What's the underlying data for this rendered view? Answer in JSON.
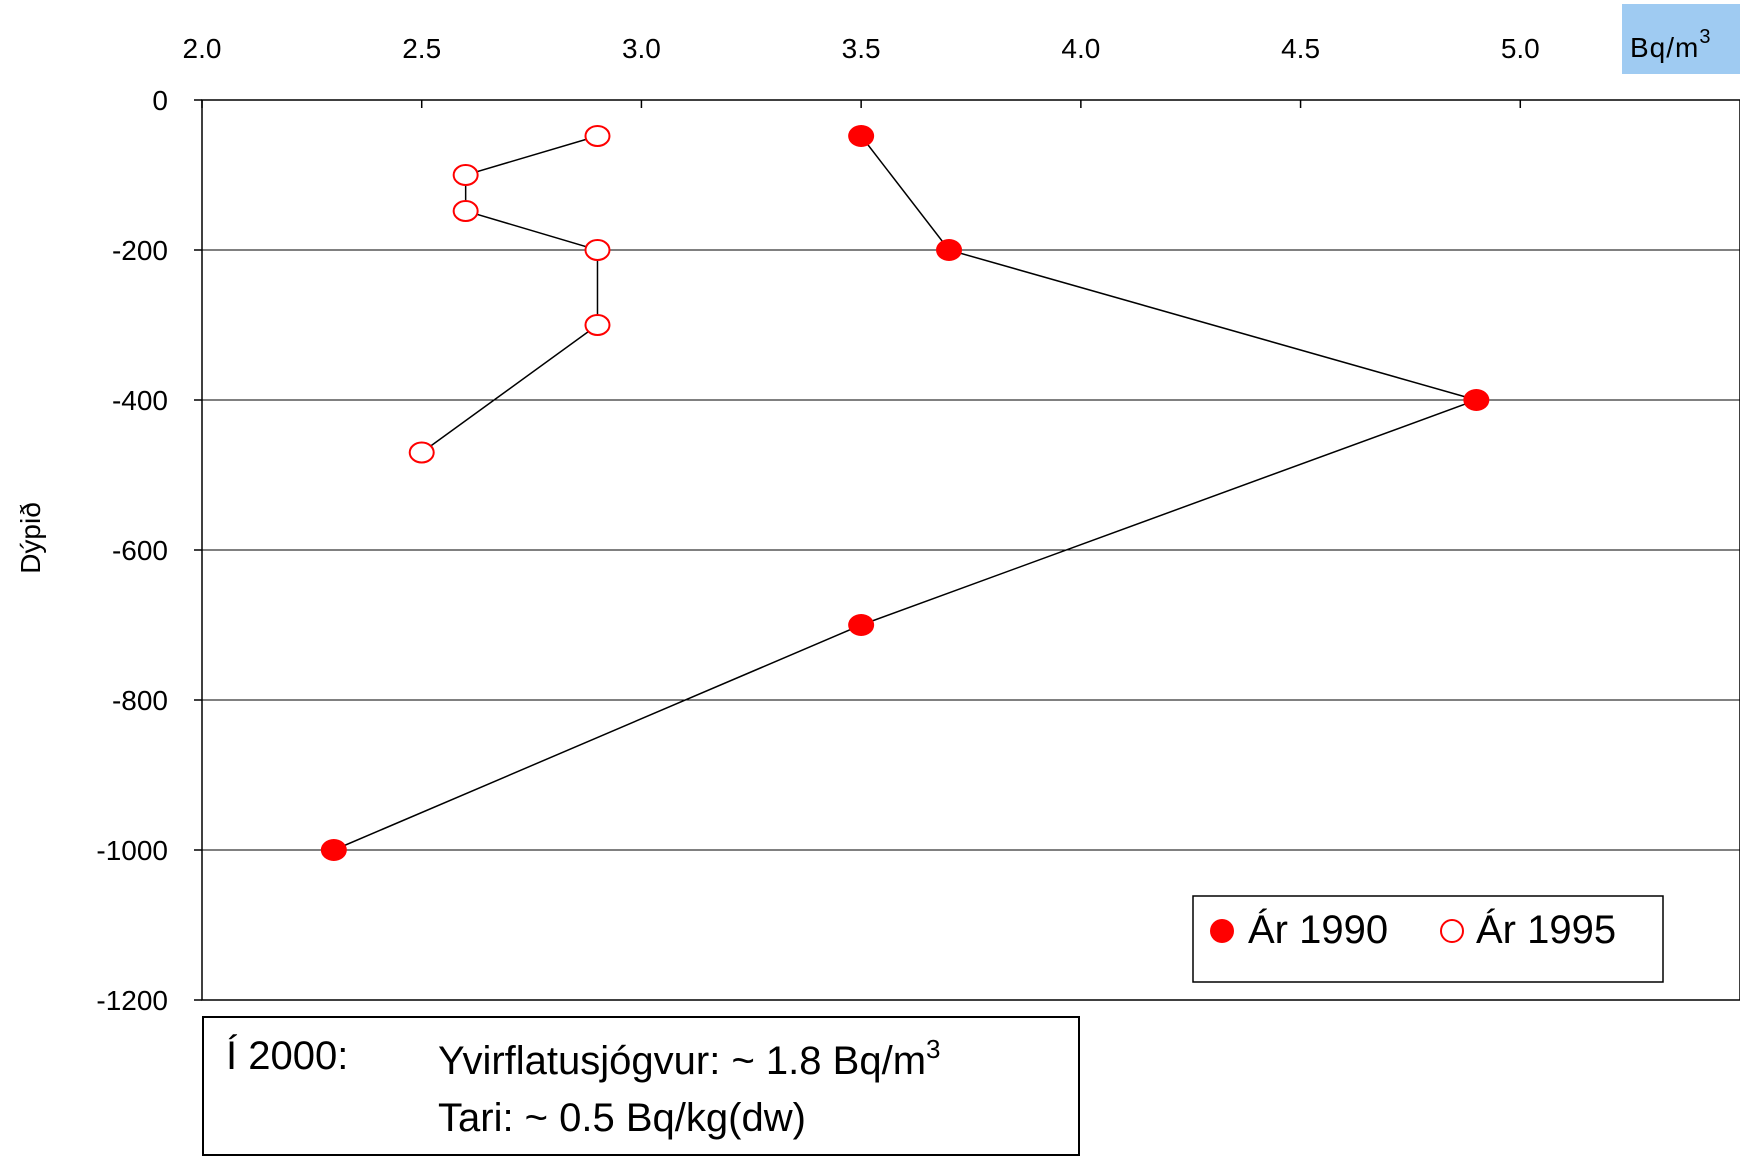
{
  "chart_data": {
    "type": "scatter",
    "ylabel": "Dýpið",
    "xlabel": "",
    "unit": {
      "base": "Bq/m",
      "exponent": "3"
    },
    "xlim": [
      2.0,
      5.5
    ],
    "ylim": [
      -1200,
      0
    ],
    "x_ticks": [
      "2.0",
      "2.5",
      "3.0",
      "3.5",
      "4.0",
      "4.5",
      "5.0"
    ],
    "x_tick_values": [
      2.0,
      2.5,
      3.0,
      3.5,
      4.0,
      4.5,
      5.0
    ],
    "y_ticks": [
      "0",
      "-200",
      "-400",
      "-600",
      "-800",
      "-1000",
      "-1200"
    ],
    "y_tick_values": [
      0,
      -200,
      -400,
      -600,
      -800,
      -1000,
      -1200
    ],
    "grid": "horizontal",
    "legend_position": "bottom-right",
    "series": [
      {
        "name": "Ár 1990",
        "marker": "filled-circle",
        "color": "#ff0000",
        "x": [
          3.5,
          3.7,
          4.9,
          3.5,
          2.3
        ],
        "y": [
          -48,
          -200,
          -400,
          -700,
          -1000
        ]
      },
      {
        "name": "Ár 1995",
        "marker": "open-circle",
        "color": "#ff0000",
        "x": [
          2.9,
          2.6,
          2.6,
          2.9,
          2.9,
          2.5
        ],
        "y": [
          -48,
          -100,
          -148,
          -200,
          -300,
          -470
        ]
      }
    ]
  },
  "note": {
    "year": "Í 2000:",
    "line1_text": "Yvirflatusjógvur: ~ 1.8 Bq/m",
    "line1_sup": "3",
    "line2_text": "Tari: ~ 0.5 Bq/kg(dw)"
  }
}
